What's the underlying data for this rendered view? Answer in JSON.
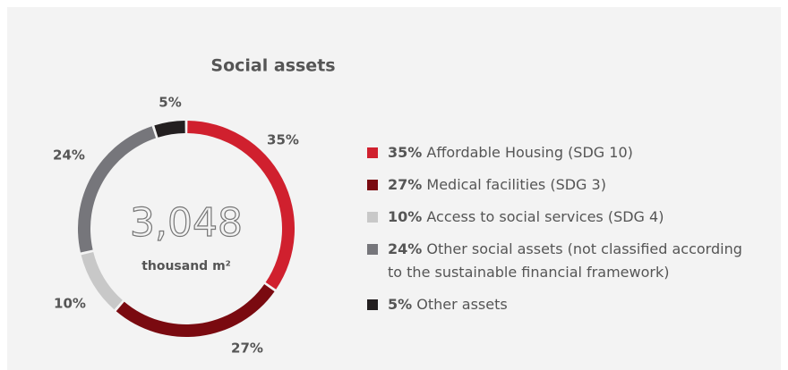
{
  "chart_data": {
    "type": "pie",
    "donut": true,
    "title": "Social assets",
    "center_label": "3,048",
    "center_unit": "thousand m²",
    "categories": [
      "Affordable Housing (SDG 10)",
      "Medical facilities (SDG 3)",
      "Access to social services (SDG 4)",
      "Other social assets (not classified according to the sustainable financial framework)",
      "Other assets"
    ],
    "values": [
      35,
      27,
      10,
      24,
      5
    ],
    "value_labels": [
      "35%",
      "27%",
      "10%",
      "24%",
      "5%"
    ],
    "colors": [
      "#d0202e",
      "#7a0a10",
      "#c8c8c8",
      "#76767b",
      "#231f20"
    ]
  }
}
